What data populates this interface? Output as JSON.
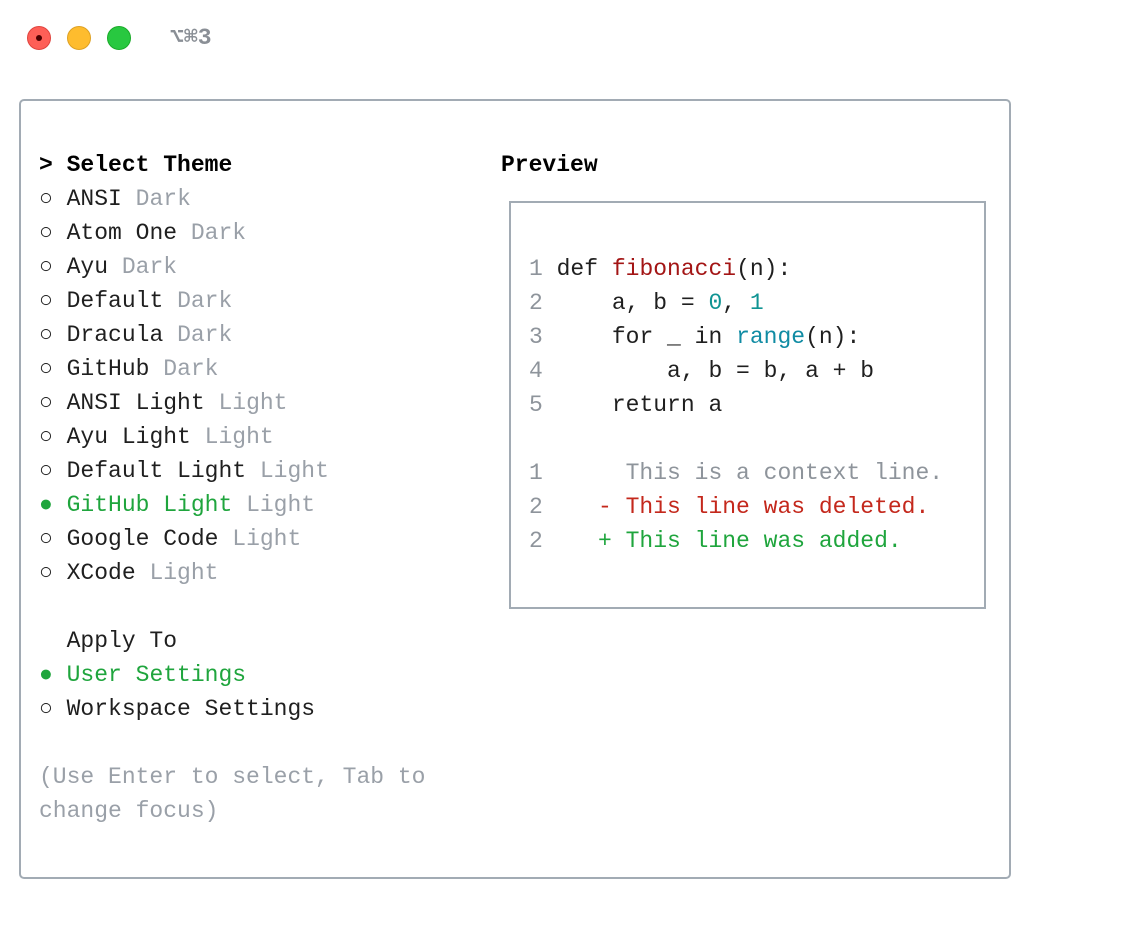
{
  "window": {
    "shortcut": "⌥⌘3"
  },
  "theme_list": {
    "prompt": ">",
    "heading": "Select Theme",
    "items": [
      {
        "marker": "○",
        "name": "ANSI",
        "variant": "Dark",
        "selected": false
      },
      {
        "marker": "○",
        "name": "Atom One",
        "variant": "Dark",
        "selected": false
      },
      {
        "marker": "○",
        "name": "Ayu",
        "variant": "Dark",
        "selected": false
      },
      {
        "marker": "○",
        "name": "Default",
        "variant": "Dark",
        "selected": false
      },
      {
        "marker": "○",
        "name": "Dracula",
        "variant": "Dark",
        "selected": false
      },
      {
        "marker": "○",
        "name": "GitHub",
        "variant": "Dark",
        "selected": false
      },
      {
        "marker": "○",
        "name": "ANSI Light",
        "variant": "Light",
        "selected": false
      },
      {
        "marker": "○",
        "name": "Ayu Light",
        "variant": "Light",
        "selected": false
      },
      {
        "marker": "○",
        "name": "Default Light",
        "variant": "Light",
        "selected": false
      },
      {
        "marker": "●",
        "name": "GitHub Light",
        "variant": "Light",
        "selected": true
      },
      {
        "marker": "○",
        "name": "Google Code",
        "variant": "Light",
        "selected": false
      },
      {
        "marker": "○",
        "name": "XCode",
        "variant": "Light",
        "selected": false
      }
    ]
  },
  "apply_to": {
    "heading": "Apply To",
    "items": [
      {
        "marker": "●",
        "name": "User Settings",
        "selected": true
      },
      {
        "marker": "○",
        "name": "Workspace Settings",
        "selected": false
      }
    ]
  },
  "hint": "(Use Enter to select, Tab to change focus)",
  "preview": {
    "heading": "Preview",
    "code": [
      {
        "number": 1,
        "tokens": [
          {
            "text": "def ",
            "kind": "plain"
          },
          {
            "text": "fibonacci",
            "kind": "function"
          },
          {
            "text": "(n):",
            "kind": "plain"
          }
        ]
      },
      {
        "number": 2,
        "tokens": [
          {
            "text": "    a, b = ",
            "kind": "plain"
          },
          {
            "text": "0",
            "kind": "number"
          },
          {
            "text": ", ",
            "kind": "plain"
          },
          {
            "text": "1",
            "kind": "number"
          }
        ]
      },
      {
        "number": 3,
        "tokens": [
          {
            "text": "    for _ in ",
            "kind": "plain"
          },
          {
            "text": "range",
            "kind": "builtin"
          },
          {
            "text": "(n):",
            "kind": "plain"
          }
        ]
      },
      {
        "number": 4,
        "tokens": [
          {
            "text": "        a, b = b, a + b",
            "kind": "plain"
          }
        ]
      },
      {
        "number": 5,
        "tokens": [
          {
            "text": "    return a",
            "kind": "plain"
          }
        ]
      }
    ],
    "diff": [
      {
        "number": 1,
        "text": "This is a context line.",
        "kind": "context"
      },
      {
        "number": 2,
        "sign": "-",
        "text": "This line was deleted.",
        "kind": "deleted"
      },
      {
        "number": 2,
        "sign": "+",
        "text": "This line was added.",
        "kind": "added"
      }
    ]
  }
}
